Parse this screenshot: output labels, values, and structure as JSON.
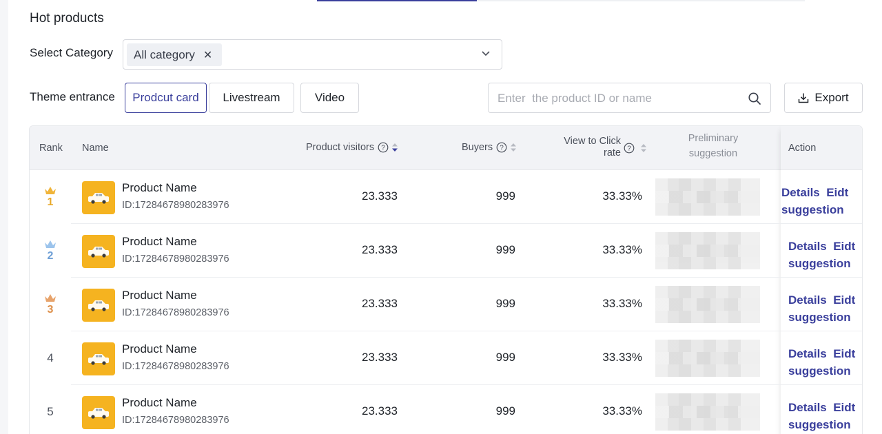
{
  "section": {
    "title": "Hot products"
  },
  "filters": {
    "category_label": "Select Category",
    "category_tag": "All category",
    "theme_label": "Theme entrance",
    "theme_options": [
      "Prodcut card",
      "Livestream",
      "Video"
    ],
    "theme_selected": "Prodcut card",
    "search_placeholder": "Enter  the product ID or name",
    "export_label": "Export"
  },
  "table": {
    "columns": {
      "rank": "Rank",
      "name": "Name",
      "visitors": "Product visitors",
      "buyers": "Buyers",
      "ctr_line1": "View to Click",
      "ctr_line2": "rate",
      "suggestion_line1": "Preliminary",
      "suggestion_line2": "suggestion",
      "action": "Action"
    },
    "rows": [
      {
        "rank": "1",
        "rank_color": "#e8a92a",
        "crown_color": "#f0b43a",
        "name": "Product Name",
        "id": "ID:17284678980283976",
        "visitors": "23.333",
        "buyers": "999",
        "ctr": "33.33%",
        "action_details": "Details",
        "action_edit": "Eidt",
        "action_suggestion": "suggestion"
      },
      {
        "rank": "2",
        "rank_color": "#6e9fd6",
        "crown_color": "#9cc4ec",
        "name": "Product Name",
        "id": "ID:17284678980283976",
        "visitors": "23.333",
        "buyers": "999",
        "ctr": "33.33%",
        "action_details": "Details",
        "action_edit": "Eidt",
        "action_suggestion": "suggestion"
      },
      {
        "rank": "3",
        "rank_color": "#dd8f4a",
        "crown_color": "#e7a36b",
        "name": "Product Name",
        "id": "ID:17284678980283976",
        "visitors": "23.333",
        "buyers": "999",
        "ctr": "33.33%",
        "action_details": "Details",
        "action_edit": "Eidt",
        "action_suggestion": "suggestion"
      },
      {
        "rank": "4",
        "rank_color": "#4a4f5a",
        "crown_color": "",
        "name": "Product Name",
        "id": "ID:17284678980283976",
        "visitors": "23.333",
        "buyers": "999",
        "ctr": "33.33%",
        "action_details": "Details",
        "action_edit": "Eidt",
        "action_suggestion": "suggestion"
      },
      {
        "rank": "5",
        "rank_color": "#4a4f5a",
        "crown_color": "",
        "name": "Product Name",
        "id": "ID:17284678980283976",
        "visitors": "23.333",
        "buyers": "999",
        "ctr": "33.33%",
        "action_details": "Details",
        "action_edit": "Eidt",
        "action_suggestion": "suggestion"
      }
    ]
  },
  "colors": {
    "accent": "#3a3f9c",
    "thumb": "#f5b320"
  }
}
